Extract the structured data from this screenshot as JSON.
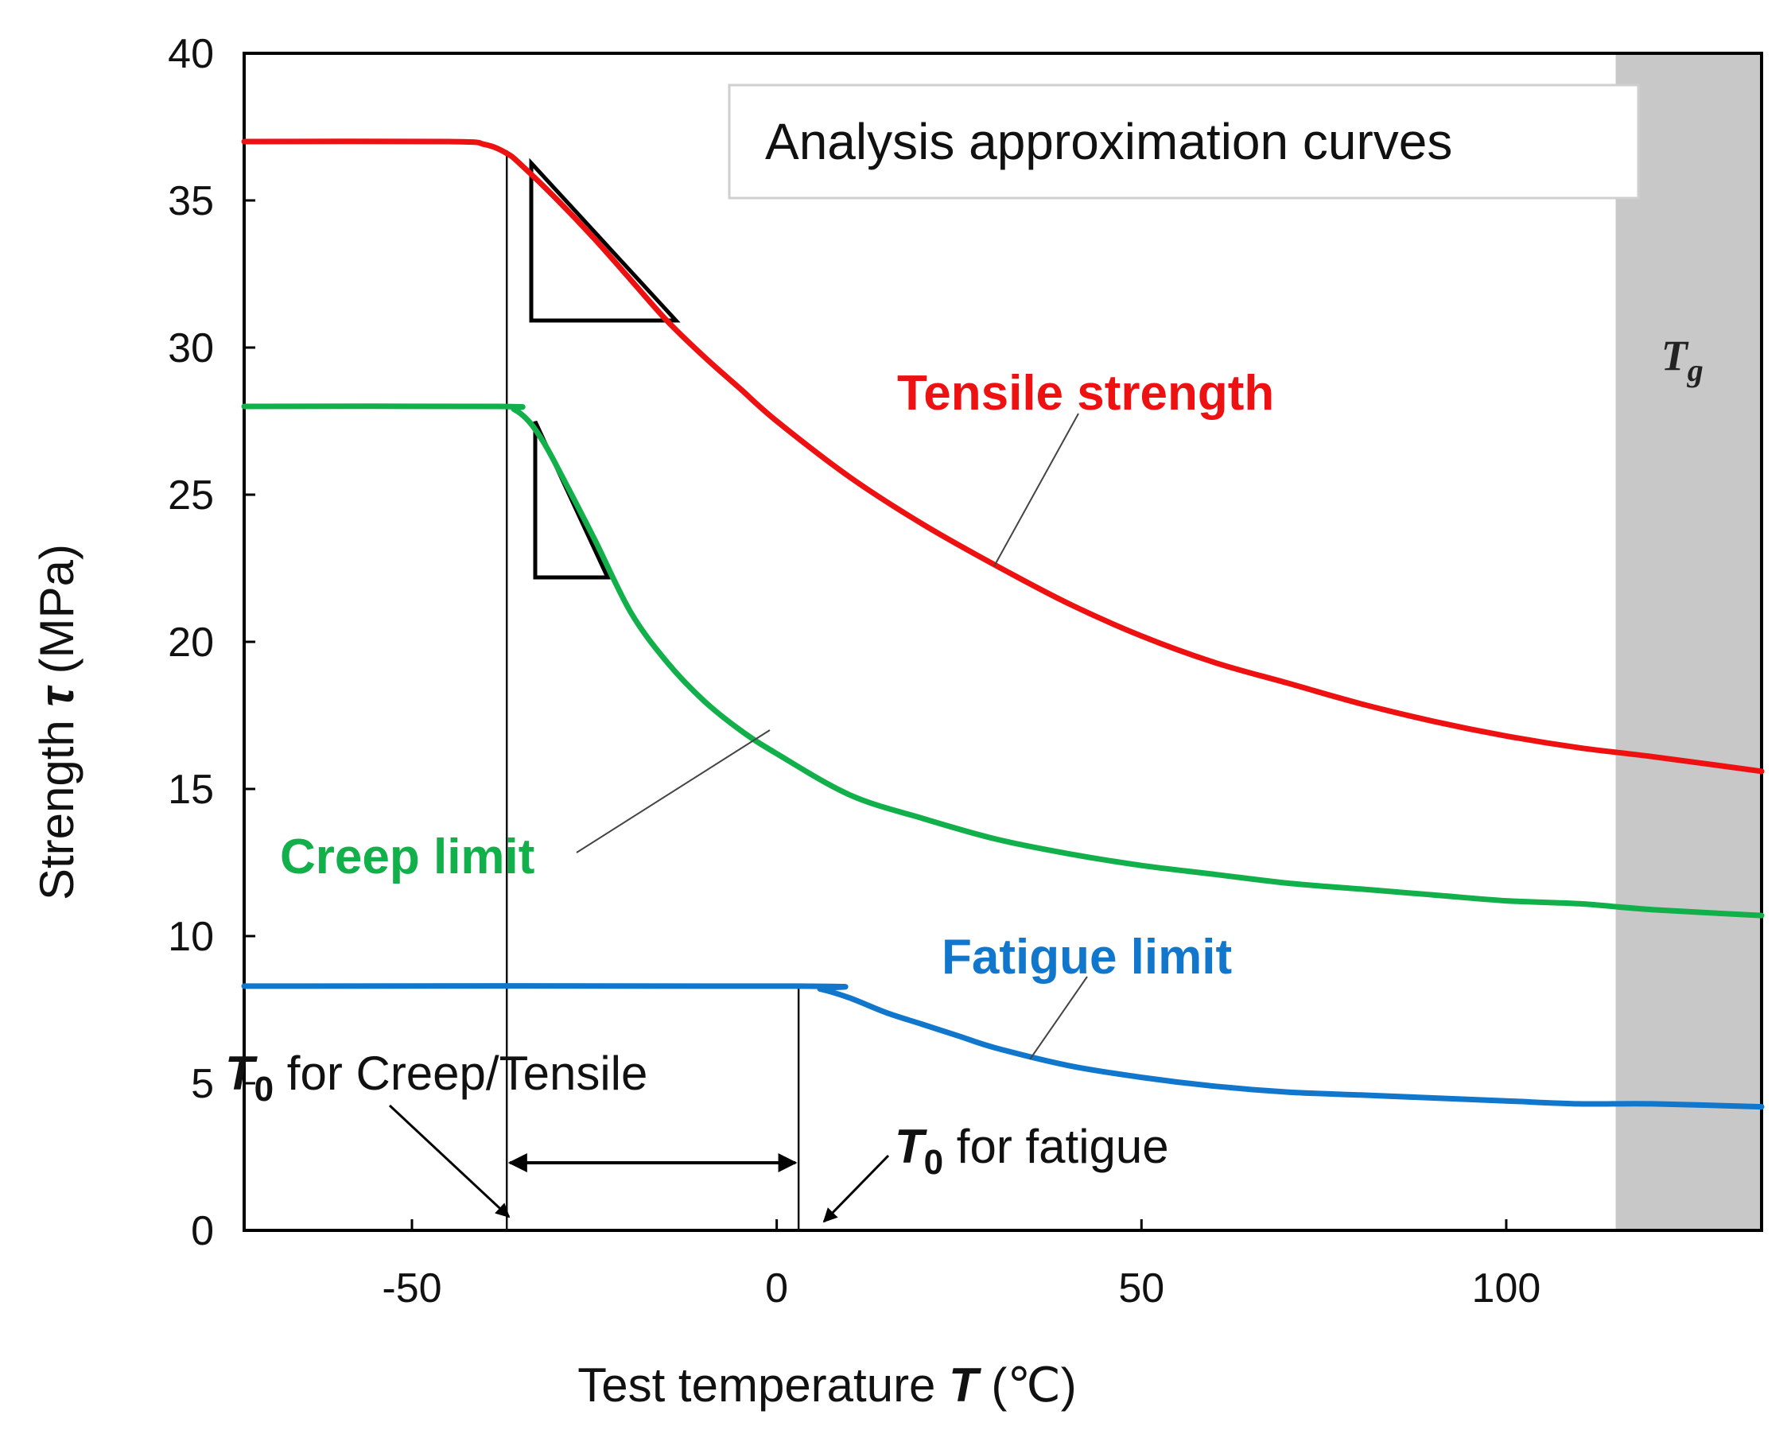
{
  "chart_data": {
    "type": "line",
    "title": "",
    "legend_box": "Analysis approximation curves",
    "xlabel": {
      "prefix": "Test temperature ",
      "symbol": "T",
      "unit": " (℃)"
    },
    "ylabel": {
      "prefix": "Strength ",
      "symbol": "τ",
      "unit": " (MPa)"
    },
    "xlim": [
      -73,
      135
    ],
    "ylim": [
      0,
      40
    ],
    "x_ticks": [
      -50,
      0,
      50,
      100
    ],
    "y_ticks": [
      0,
      5,
      10,
      15,
      20,
      25,
      30,
      35,
      40
    ],
    "series": [
      {
        "name": "Tensile strength",
        "color": "#ee1111",
        "x": [
          -73,
          -45,
          -40,
          -37,
          -35,
          -30,
          -25,
          -20,
          -15,
          -10,
          -5,
          0,
          10,
          20,
          30,
          40,
          50,
          60,
          70,
          80,
          90,
          100,
          110,
          120,
          135
        ],
        "y": [
          37.0,
          37.0,
          36.9,
          36.6,
          36.2,
          35.0,
          33.7,
          32.3,
          30.9,
          29.7,
          28.6,
          27.5,
          25.6,
          24.0,
          22.6,
          21.3,
          20.2,
          19.3,
          18.6,
          17.9,
          17.3,
          16.8,
          16.4,
          16.1,
          15.6
        ]
      },
      {
        "name": "Creep limit",
        "color": "#11b04a",
        "x": [
          -73,
          -38,
          -36,
          -34,
          -32,
          -30,
          -25,
          -20,
          -15,
          -10,
          -5,
          0,
          10,
          20,
          30,
          40,
          50,
          60,
          70,
          80,
          90,
          100,
          110,
          120,
          135
        ],
        "y": [
          28.0,
          28.0,
          27.9,
          27.5,
          26.8,
          25.9,
          23.5,
          21.0,
          19.3,
          18.0,
          17.0,
          16.2,
          14.8,
          14.0,
          13.3,
          12.8,
          12.4,
          12.1,
          11.8,
          11.6,
          11.4,
          11.2,
          11.1,
          10.9,
          10.7
        ]
      },
      {
        "name": "Fatigue limit",
        "color": "#1177cc",
        "x": [
          -73,
          3,
          6,
          10,
          15,
          20,
          25,
          30,
          40,
          50,
          60,
          70,
          80,
          90,
          100,
          110,
          120,
          135
        ],
        "y": [
          8.3,
          8.3,
          8.2,
          7.9,
          7.4,
          7.0,
          6.6,
          6.2,
          5.6,
          5.2,
          4.9,
          4.7,
          4.6,
          4.5,
          4.4,
          4.3,
          4.3,
          4.2
        ]
      }
    ],
    "shaded_region": {
      "label_symbol": "T",
      "label_subscript": "g",
      "x_start": 115,
      "x_end": 135,
      "color": "#c8c8c8"
    },
    "annotations": {
      "t0_creep_tensile": {
        "symbol": "T",
        "subscript": "0",
        "text": " for Creep/Tensile",
        "x": -37
      },
      "t0_fatigue": {
        "symbol": "T",
        "subscript": "0",
        "text": " for fatigue",
        "x": 3
      }
    }
  }
}
